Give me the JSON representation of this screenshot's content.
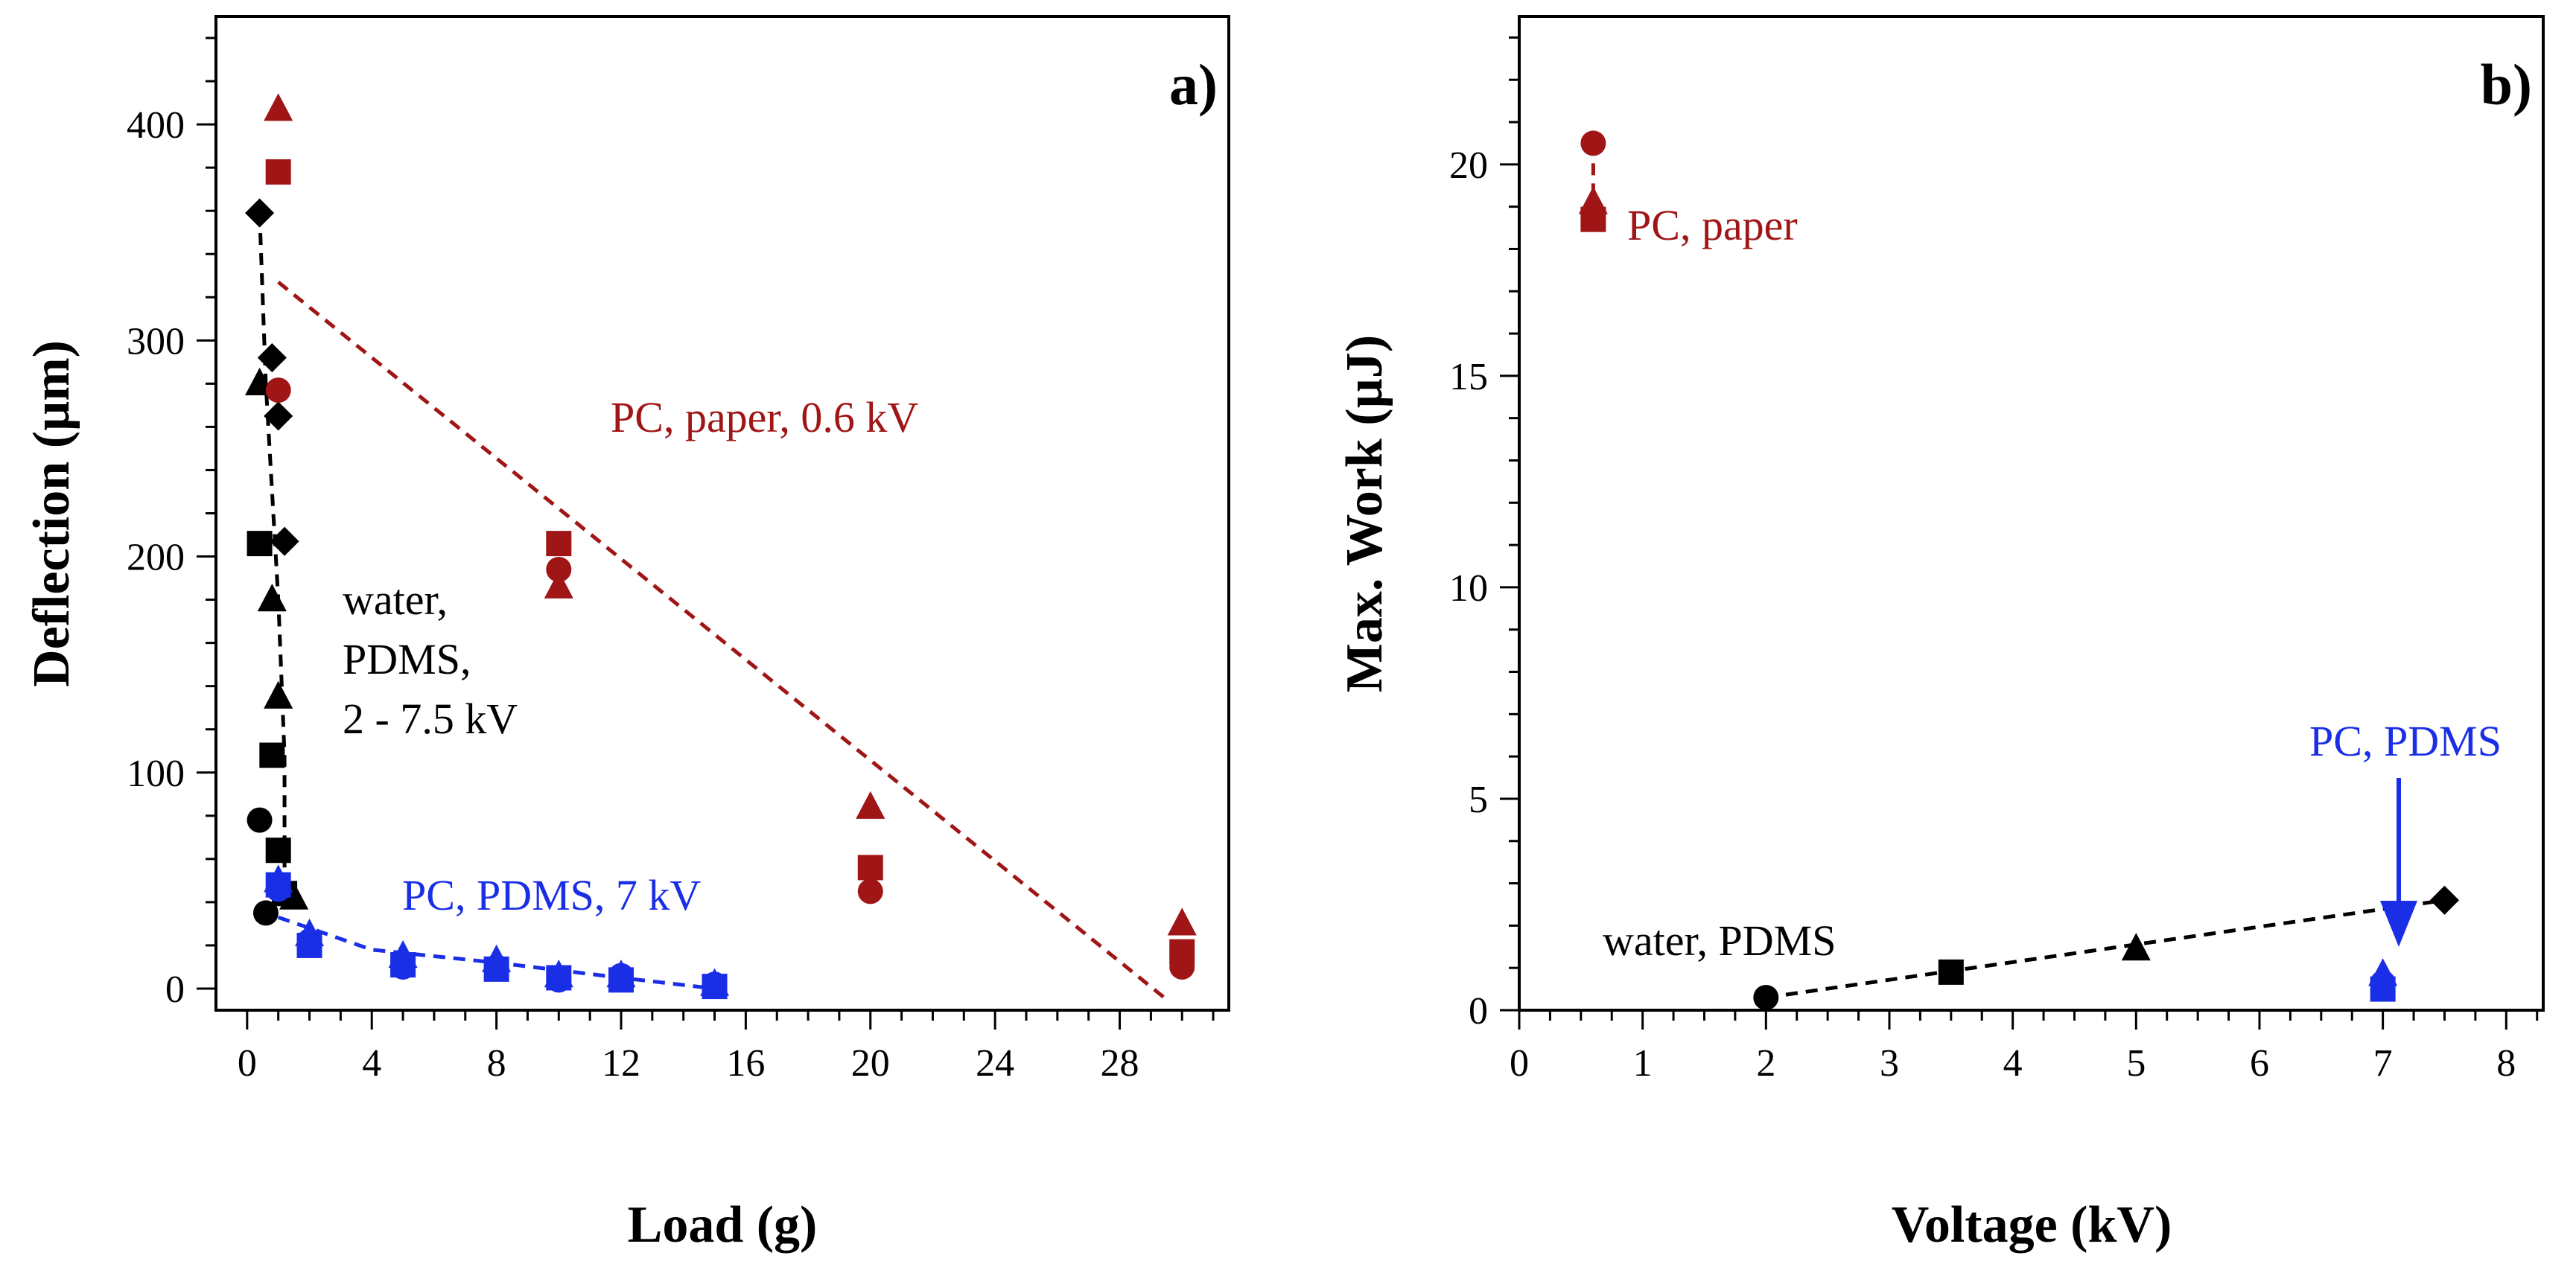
{
  "colors": {
    "black": "#000000",
    "red": "#a01515",
    "blue": "#1a2ee6"
  },
  "chart_data": [
    {
      "id": "a",
      "panel_label": "a)",
      "type": "scatter",
      "xlabel": "Load (g)",
      "ylabel": "Deflection (µm)",
      "xlim": [
        -1,
        31.5
      ],
      "ylim": [
        -10,
        450
      ],
      "xticks": [
        0,
        4,
        8,
        12,
        16,
        20,
        24,
        28
      ],
      "yticks": [
        0,
        100,
        200,
        300,
        400
      ],
      "annotations": [
        {
          "id": "pc-paper",
          "text": "PC, paper, 0.6 kV",
          "color": "red"
        },
        {
          "id": "water-1",
          "text": "water,",
          "color": "black"
        },
        {
          "id": "water-2",
          "text": "PDMS,",
          "color": "black"
        },
        {
          "id": "water-3",
          "text": "2 - 7.5 kV",
          "color": "black"
        },
        {
          "id": "pc-pdms",
          "text": "PC, PDMS, 7 kV",
          "color": "blue"
        }
      ],
      "series": [
        {
          "name": "water circle",
          "color": "black",
          "marker": "circle",
          "x": [
            0.4,
            0.6
          ],
          "y": [
            78,
            35
          ]
        },
        {
          "name": "water square",
          "color": "black",
          "marker": "square",
          "x": [
            0.4,
            0.8,
            1.0,
            1.2
          ],
          "y": [
            206,
            108,
            64,
            44
          ]
        },
        {
          "name": "water triangle",
          "color": "black",
          "marker": "triangle",
          "x": [
            0.4,
            0.8,
            1.0,
            1.5
          ],
          "y": [
            280,
            180,
            135,
            42
          ]
        },
        {
          "name": "water diamond",
          "color": "black",
          "marker": "diamond",
          "x": [
            0.4,
            0.8,
            1.0,
            1.2
          ],
          "y": [
            359,
            292,
            265,
            207
          ]
        },
        {
          "name": "paper circle",
          "color": "red",
          "marker": "circle",
          "x": [
            1,
            10,
            20,
            30
          ],
          "y": [
            277,
            194,
            45,
            10
          ]
        },
        {
          "name": "paper square",
          "color": "red",
          "marker": "square",
          "x": [
            1,
            10,
            20,
            30
          ],
          "y": [
            378,
            206,
            56,
            17
          ]
        },
        {
          "name": "paper triangle",
          "color": "red",
          "marker": "triangle",
          "x": [
            1,
            10,
            20,
            30
          ],
          "y": [
            407,
            186,
            84,
            30
          ]
        },
        {
          "name": "pdms circle",
          "color": "blue",
          "marker": "circle",
          "x": [
            1,
            2,
            5,
            8,
            10,
            12,
            15
          ],
          "y": [
            46,
            22,
            10,
            10,
            4,
            6,
            2
          ]
        },
        {
          "name": "pdms square",
          "color": "blue",
          "marker": "square",
          "x": [
            1,
            2,
            5,
            8,
            10,
            12,
            15
          ],
          "y": [
            48,
            20,
            11,
            9,
            5,
            4,
            1
          ]
        },
        {
          "name": "pdms triangle",
          "color": "blue",
          "marker": "triangle",
          "x": [
            1,
            2,
            5,
            8,
            10,
            12,
            15
          ],
          "y": [
            50,
            25,
            15,
            13,
            6,
            6,
            2
          ]
        }
      ],
      "fit_lines": [
        {
          "name": "water fit",
          "color": "black",
          "points": [
            [
              0.4,
              359
            ],
            [
              0.6,
              280
            ],
            [
              1.0,
              180
            ],
            [
              1.2,
              108
            ],
            [
              1.2,
              35
            ]
          ]
        },
        {
          "name": "paper fit",
          "color": "red",
          "points": [
            [
              1.0,
              327
            ],
            [
              29.5,
              -5
            ]
          ]
        },
        {
          "name": "pdms fit",
          "color": "blue",
          "points": [
            [
              1.0,
              33
            ],
            [
              4.0,
              18
            ],
            [
              8.0,
              12
            ],
            [
              12.0,
              5
            ],
            [
              15.0,
              0
            ]
          ]
        }
      ]
    },
    {
      "id": "b",
      "panel_label": "b)",
      "type": "scatter",
      "xlabel": "Voltage (kV)",
      "ylabel": "Max. Work (µJ)",
      "xlim": [
        0,
        8.3
      ],
      "ylim": [
        0,
        23.5
      ],
      "xticks": [
        0,
        1,
        2,
        3,
        4,
        5,
        6,
        7,
        8
      ],
      "yticks": [
        0,
        5,
        10,
        15,
        20
      ],
      "annotations": [
        {
          "id": "pc-paper",
          "text": "PC, paper",
          "color": "red"
        },
        {
          "id": "pc-pdms",
          "text": "PC, PDMS",
          "color": "blue"
        },
        {
          "id": "water",
          "text": "water, PDMS",
          "color": "black"
        }
      ],
      "series": [
        {
          "name": "water",
          "color": "black",
          "markers": [
            "circle",
            "square",
            "triangle",
            "diamond"
          ],
          "x": [
            2,
            3.5,
            5,
            7.5
          ],
          "y": [
            0.3,
            0.9,
            1.45,
            2.6
          ]
        },
        {
          "name": "paper",
          "color": "red",
          "markers": [
            "circle",
            "triangle",
            "square"
          ],
          "x": [
            0.6,
            0.6,
            0.6
          ],
          "y": [
            20.5,
            19.1,
            18.7
          ]
        },
        {
          "name": "pdms",
          "color": "blue",
          "markers": [
            "triangle",
            "circle",
            "square"
          ],
          "x": [
            7,
            7,
            7
          ],
          "y": [
            0.85,
            0.65,
            0.5
          ]
        }
      ],
      "fit_lines": [
        {
          "name": "water fit",
          "color": "black",
          "points": [
            [
              2,
              0.3
            ],
            [
              7.5,
              2.6
            ]
          ]
        },
        {
          "name": "paper fit",
          "color": "red",
          "points": [
            [
              0.6,
              20.5
            ],
            [
              0.6,
              18.7
            ]
          ]
        }
      ]
    }
  ]
}
